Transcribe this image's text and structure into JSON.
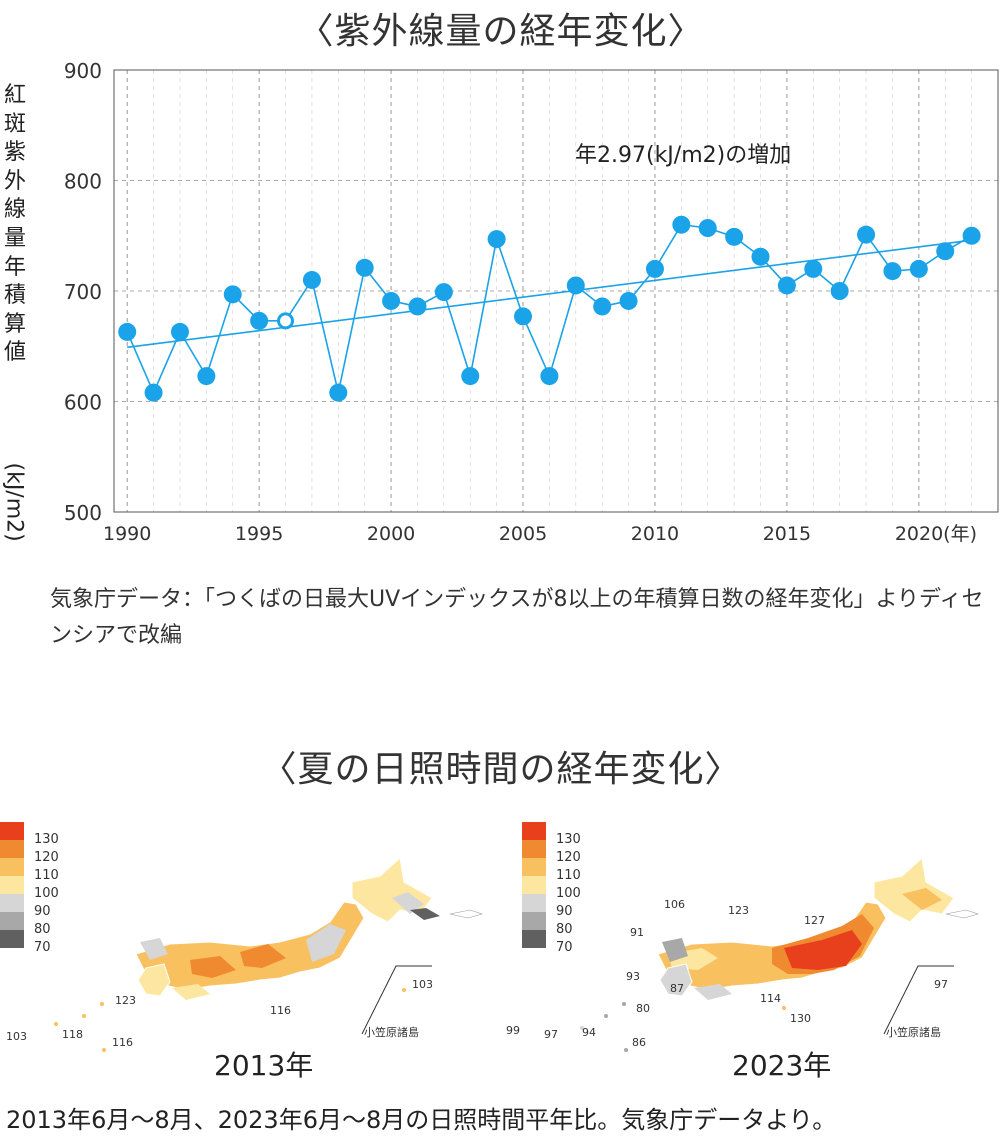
{
  "uv": {
    "title": "〈紫外線量の経年変化〉",
    "ylabel": "紅斑紫外線量年積算値",
    "yunit": "(kJ/m2)",
    "annotation": "年2.97(kJ/m2)の増加",
    "source": "気象庁データ：「つくばの日最大UVインデックスが8以上の年積算日数の経年変化」よりディセンシアで改編"
  },
  "chart_data": {
    "type": "line",
    "x": [
      1990,
      1991,
      1992,
      1993,
      1994,
      1995,
      1996,
      1997,
      1998,
      1999,
      2000,
      2001,
      2002,
      2003,
      2004,
      2005,
      2006,
      2007,
      2008,
      2009,
      2010,
      2011,
      2012,
      2013,
      2014,
      2015,
      2016,
      2017,
      2018,
      2019,
      2020,
      2021,
      2022
    ],
    "series": [
      {
        "values": [
          663,
          608,
          663,
          623,
          697,
          673,
          673,
          710,
          608,
          721,
          691,
          686,
          699,
          623,
          747,
          677,
          623,
          705,
          686,
          691,
          720,
          760,
          757,
          749,
          731,
          705,
          720,
          700,
          751,
          718,
          720,
          736,
          750
        ],
        "hollow_index": 6
      }
    ],
    "trend": {
      "start": [
        1990,
        649
      ],
      "end": [
        2022,
        746
      ]
    },
    "xticks": [
      1990,
      1995,
      2000,
      2005,
      2010,
      2015,
      2020
    ],
    "xtick_labels": [
      "1990",
      "1995",
      "2000",
      "2005",
      "2010",
      "2015",
      "2020(年)"
    ],
    "yticks": [
      500,
      600,
      700,
      800,
      900
    ],
    "xlim": [
      1989.5,
      2023
    ],
    "ylim": [
      500,
      900
    ],
    "grid": true,
    "color": "#1aa3e8"
  },
  "sunshine": {
    "title": "〈夏の日照時間の経年変化〉",
    "legend": [
      {
        "label": "130",
        "color": "#e8401c"
      },
      {
        "label": "120",
        "color": "#f08a30"
      },
      {
        "label": "110",
        "color": "#f9c060"
      },
      {
        "label": "100",
        "color": "#fde7a0"
      },
      {
        "label": "90",
        "color": "#d6d6d6"
      },
      {
        "label": "80",
        "color": "#a8a8a8"
      },
      {
        "label": "70",
        "color": "#606060"
      }
    ],
    "maps": [
      {
        "year": "2013年",
        "labels": [
          "103",
          "118",
          "116",
          "123",
          "116",
          "103"
        ],
        "ogasawara": "小笠原諸島"
      },
      {
        "year": "2023年",
        "labels": [
          "106",
          "123",
          "127",
          "91",
          "93",
          "87",
          "80",
          "114",
          "130",
          "99",
          "97",
          "94",
          "86",
          "97"
        ],
        "ogasawara": "小笠原諸島"
      }
    ],
    "footer": "2013年6月〜8月、2023年6月〜8月の日照時間平年比。気象庁データより。"
  }
}
